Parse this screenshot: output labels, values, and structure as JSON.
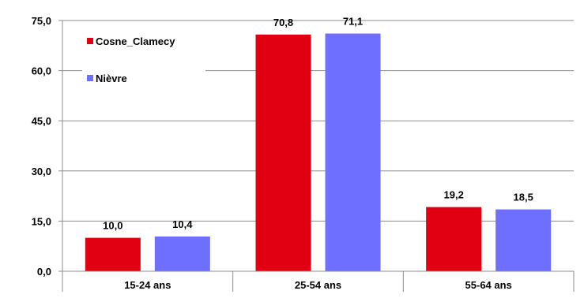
{
  "chart_data": {
    "type": "bar",
    "categories": [
      "15-24 ans",
      "25-54 ans",
      "55-64 ans"
    ],
    "series": [
      {
        "name": "Cosne_Clamecy",
        "values": [
          10.0,
          70.8,
          19.2
        ],
        "labels": [
          "10,0",
          "70,8",
          "19,2"
        ],
        "color": "#e00012"
      },
      {
        "name": "Nièvre",
        "values": [
          10.4,
          71.1,
          18.5
        ],
        "labels": [
          "10,4",
          "71,1",
          "18,5"
        ],
        "color": "#6f6fff"
      }
    ],
    "yticks": [
      0,
      15,
      30,
      45,
      60,
      75
    ],
    "ytick_labels": [
      "0,0",
      "15,0",
      "30,0",
      "45,0",
      "60,0",
      "75,0"
    ],
    "ylim": [
      0,
      75
    ],
    "grid": true,
    "legend_position": "top-left",
    "title": "",
    "xlabel": "",
    "ylabel": ""
  }
}
